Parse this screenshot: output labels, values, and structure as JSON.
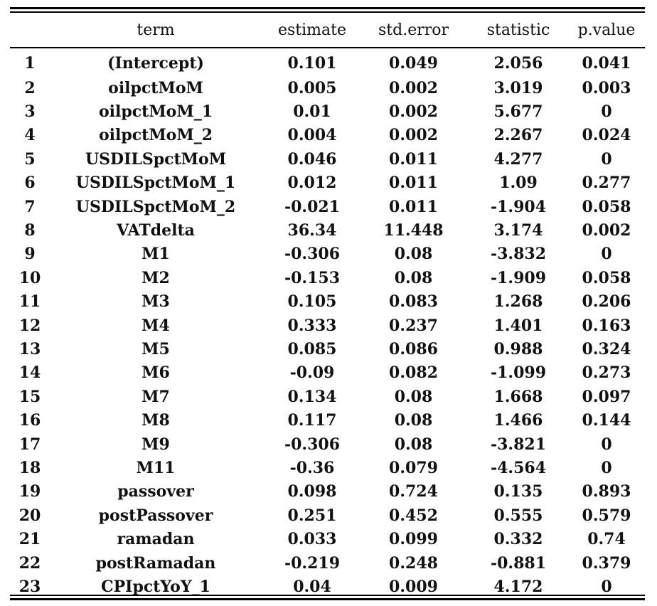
{
  "table": {
    "columns": [
      "",
      "term",
      "estimate",
      "std.error",
      "statistic",
      "p.value"
    ],
    "rows": [
      {
        "idx": "1",
        "term": "(Intercept)",
        "estimate": "0.101",
        "std_error": "0.049",
        "statistic": "2.056",
        "p_value": "0.041"
      },
      {
        "idx": "2",
        "term": "oilpctMoM",
        "estimate": "0.005",
        "std_error": "0.002",
        "statistic": "3.019",
        "p_value": "0.003"
      },
      {
        "idx": "3",
        "term": "oilpctMoM_1",
        "estimate": "0.01",
        "std_error": "0.002",
        "statistic": "5.677",
        "p_value": "0"
      },
      {
        "idx": "4",
        "term": "oilpctMoM_2",
        "estimate": "0.004",
        "std_error": "0.002",
        "statistic": "2.267",
        "p_value": "0.024"
      },
      {
        "idx": "5",
        "term": "USDILSpctMoM",
        "estimate": "0.046",
        "std_error": "0.011",
        "statistic": "4.277",
        "p_value": "0"
      },
      {
        "idx": "6",
        "term": "USDILSpctMoM_1",
        "estimate": "0.012",
        "std_error": "0.011",
        "statistic": "1.09",
        "p_value": "0.277"
      },
      {
        "idx": "7",
        "term": "USDILSpctMoM_2",
        "estimate": "-0.021",
        "std_error": "0.011",
        "statistic": "-1.904",
        "p_value": "0.058"
      },
      {
        "idx": "8",
        "term": "VATdelta",
        "estimate": "36.34",
        "std_error": "11.448",
        "statistic": "3.174",
        "p_value": "0.002"
      },
      {
        "idx": "9",
        "term": "M1",
        "estimate": "-0.306",
        "std_error": "0.08",
        "statistic": "-3.832",
        "p_value": "0"
      },
      {
        "idx": "10",
        "term": "M2",
        "estimate": "-0.153",
        "std_error": "0.08",
        "statistic": "-1.909",
        "p_value": "0.058"
      },
      {
        "idx": "11",
        "term": "M3",
        "estimate": "0.105",
        "std_error": "0.083",
        "statistic": "1.268",
        "p_value": "0.206"
      },
      {
        "idx": "12",
        "term": "M4",
        "estimate": "0.333",
        "std_error": "0.237",
        "statistic": "1.401",
        "p_value": "0.163"
      },
      {
        "idx": "13",
        "term": "M5",
        "estimate": "0.085",
        "std_error": "0.086",
        "statistic": "0.988",
        "p_value": "0.324"
      },
      {
        "idx": "14",
        "term": "M6",
        "estimate": "-0.09",
        "std_error": "0.082",
        "statistic": "-1.099",
        "p_value": "0.273"
      },
      {
        "idx": "15",
        "term": "M7",
        "estimate": "0.134",
        "std_error": "0.08",
        "statistic": "1.668",
        "p_value": "0.097"
      },
      {
        "idx": "16",
        "term": "M8",
        "estimate": "0.117",
        "std_error": "0.08",
        "statistic": "1.466",
        "p_value": "0.144"
      },
      {
        "idx": "17",
        "term": "M9",
        "estimate": "-0.306",
        "std_error": "0.08",
        "statistic": "-3.821",
        "p_value": "0"
      },
      {
        "idx": "18",
        "term": "M11",
        "estimate": "-0.36",
        "std_error": "0.079",
        "statistic": "-4.564",
        "p_value": "0"
      },
      {
        "idx": "19",
        "term": "passover",
        "estimate": "0.098",
        "std_error": "0.724",
        "statistic": "0.135",
        "p_value": "0.893"
      },
      {
        "idx": "20",
        "term": "postPassover",
        "estimate": "0.251",
        "std_error": "0.452",
        "statistic": "0.555",
        "p_value": "0.579"
      },
      {
        "idx": "21",
        "term": "ramadan",
        "estimate": "0.033",
        "std_error": "0.099",
        "statistic": "0.332",
        "p_value": "0.74"
      },
      {
        "idx": "22",
        "term": "postRamadan",
        "estimate": "-0.219",
        "std_error": "0.248",
        "statistic": "-0.881",
        "p_value": "0.379"
      },
      {
        "idx": "23",
        "term": "CPIpctYoY_1",
        "estimate": "0.04",
        "std_error": "0.009",
        "statistic": "4.172",
        "p_value": "0"
      }
    ]
  }
}
